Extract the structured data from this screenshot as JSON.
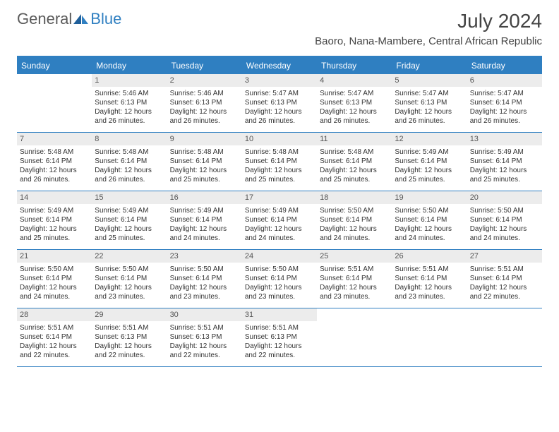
{
  "logo": {
    "text1": "General",
    "text2": "Blue"
  },
  "title": "July 2024",
  "location": "Baoro, Nana-Mambere, Central African Republic",
  "day_names": [
    "Sunday",
    "Monday",
    "Tuesday",
    "Wednesday",
    "Thursday",
    "Friday",
    "Saturday"
  ],
  "colors": {
    "accent": "#2f7fc1",
    "daynum_bg": "#ececec",
    "text": "#444444"
  },
  "weeks": [
    [
      {
        "n": "",
        "lines": []
      },
      {
        "n": "1",
        "lines": [
          "Sunrise: 5:46 AM",
          "Sunset: 6:13 PM",
          "Daylight: 12 hours and 26 minutes."
        ]
      },
      {
        "n": "2",
        "lines": [
          "Sunrise: 5:46 AM",
          "Sunset: 6:13 PM",
          "Daylight: 12 hours and 26 minutes."
        ]
      },
      {
        "n": "3",
        "lines": [
          "Sunrise: 5:47 AM",
          "Sunset: 6:13 PM",
          "Daylight: 12 hours and 26 minutes."
        ]
      },
      {
        "n": "4",
        "lines": [
          "Sunrise: 5:47 AM",
          "Sunset: 6:13 PM",
          "Daylight: 12 hours and 26 minutes."
        ]
      },
      {
        "n": "5",
        "lines": [
          "Sunrise: 5:47 AM",
          "Sunset: 6:13 PM",
          "Daylight: 12 hours and 26 minutes."
        ]
      },
      {
        "n": "6",
        "lines": [
          "Sunrise: 5:47 AM",
          "Sunset: 6:14 PM",
          "Daylight: 12 hours and 26 minutes."
        ]
      }
    ],
    [
      {
        "n": "7",
        "lines": [
          "Sunrise: 5:48 AM",
          "Sunset: 6:14 PM",
          "Daylight: 12 hours and 26 minutes."
        ]
      },
      {
        "n": "8",
        "lines": [
          "Sunrise: 5:48 AM",
          "Sunset: 6:14 PM",
          "Daylight: 12 hours and 26 minutes."
        ]
      },
      {
        "n": "9",
        "lines": [
          "Sunrise: 5:48 AM",
          "Sunset: 6:14 PM",
          "Daylight: 12 hours and 25 minutes."
        ]
      },
      {
        "n": "10",
        "lines": [
          "Sunrise: 5:48 AM",
          "Sunset: 6:14 PM",
          "Daylight: 12 hours and 25 minutes."
        ]
      },
      {
        "n": "11",
        "lines": [
          "Sunrise: 5:48 AM",
          "Sunset: 6:14 PM",
          "Daylight: 12 hours and 25 minutes."
        ]
      },
      {
        "n": "12",
        "lines": [
          "Sunrise: 5:49 AM",
          "Sunset: 6:14 PM",
          "Daylight: 12 hours and 25 minutes."
        ]
      },
      {
        "n": "13",
        "lines": [
          "Sunrise: 5:49 AM",
          "Sunset: 6:14 PM",
          "Daylight: 12 hours and 25 minutes."
        ]
      }
    ],
    [
      {
        "n": "14",
        "lines": [
          "Sunrise: 5:49 AM",
          "Sunset: 6:14 PM",
          "Daylight: 12 hours and 25 minutes."
        ]
      },
      {
        "n": "15",
        "lines": [
          "Sunrise: 5:49 AM",
          "Sunset: 6:14 PM",
          "Daylight: 12 hours and 25 minutes."
        ]
      },
      {
        "n": "16",
        "lines": [
          "Sunrise: 5:49 AM",
          "Sunset: 6:14 PM",
          "Daylight: 12 hours and 24 minutes."
        ]
      },
      {
        "n": "17",
        "lines": [
          "Sunrise: 5:49 AM",
          "Sunset: 6:14 PM",
          "Daylight: 12 hours and 24 minutes."
        ]
      },
      {
        "n": "18",
        "lines": [
          "Sunrise: 5:50 AM",
          "Sunset: 6:14 PM",
          "Daylight: 12 hours and 24 minutes."
        ]
      },
      {
        "n": "19",
        "lines": [
          "Sunrise: 5:50 AM",
          "Sunset: 6:14 PM",
          "Daylight: 12 hours and 24 minutes."
        ]
      },
      {
        "n": "20",
        "lines": [
          "Sunrise: 5:50 AM",
          "Sunset: 6:14 PM",
          "Daylight: 12 hours and 24 minutes."
        ]
      }
    ],
    [
      {
        "n": "21",
        "lines": [
          "Sunrise: 5:50 AM",
          "Sunset: 6:14 PM",
          "Daylight: 12 hours and 24 minutes."
        ]
      },
      {
        "n": "22",
        "lines": [
          "Sunrise: 5:50 AM",
          "Sunset: 6:14 PM",
          "Daylight: 12 hours and 23 minutes."
        ]
      },
      {
        "n": "23",
        "lines": [
          "Sunrise: 5:50 AM",
          "Sunset: 6:14 PM",
          "Daylight: 12 hours and 23 minutes."
        ]
      },
      {
        "n": "24",
        "lines": [
          "Sunrise: 5:50 AM",
          "Sunset: 6:14 PM",
          "Daylight: 12 hours and 23 minutes."
        ]
      },
      {
        "n": "25",
        "lines": [
          "Sunrise: 5:51 AM",
          "Sunset: 6:14 PM",
          "Daylight: 12 hours and 23 minutes."
        ]
      },
      {
        "n": "26",
        "lines": [
          "Sunrise: 5:51 AM",
          "Sunset: 6:14 PM",
          "Daylight: 12 hours and 23 minutes."
        ]
      },
      {
        "n": "27",
        "lines": [
          "Sunrise: 5:51 AM",
          "Sunset: 6:14 PM",
          "Daylight: 12 hours and 22 minutes."
        ]
      }
    ],
    [
      {
        "n": "28",
        "lines": [
          "Sunrise: 5:51 AM",
          "Sunset: 6:14 PM",
          "Daylight: 12 hours and 22 minutes."
        ]
      },
      {
        "n": "29",
        "lines": [
          "Sunrise: 5:51 AM",
          "Sunset: 6:13 PM",
          "Daylight: 12 hours and 22 minutes."
        ]
      },
      {
        "n": "30",
        "lines": [
          "Sunrise: 5:51 AM",
          "Sunset: 6:13 PM",
          "Daylight: 12 hours and 22 minutes."
        ]
      },
      {
        "n": "31",
        "lines": [
          "Sunrise: 5:51 AM",
          "Sunset: 6:13 PM",
          "Daylight: 12 hours and 22 minutes."
        ]
      },
      {
        "n": "",
        "lines": []
      },
      {
        "n": "",
        "lines": []
      },
      {
        "n": "",
        "lines": []
      }
    ]
  ]
}
